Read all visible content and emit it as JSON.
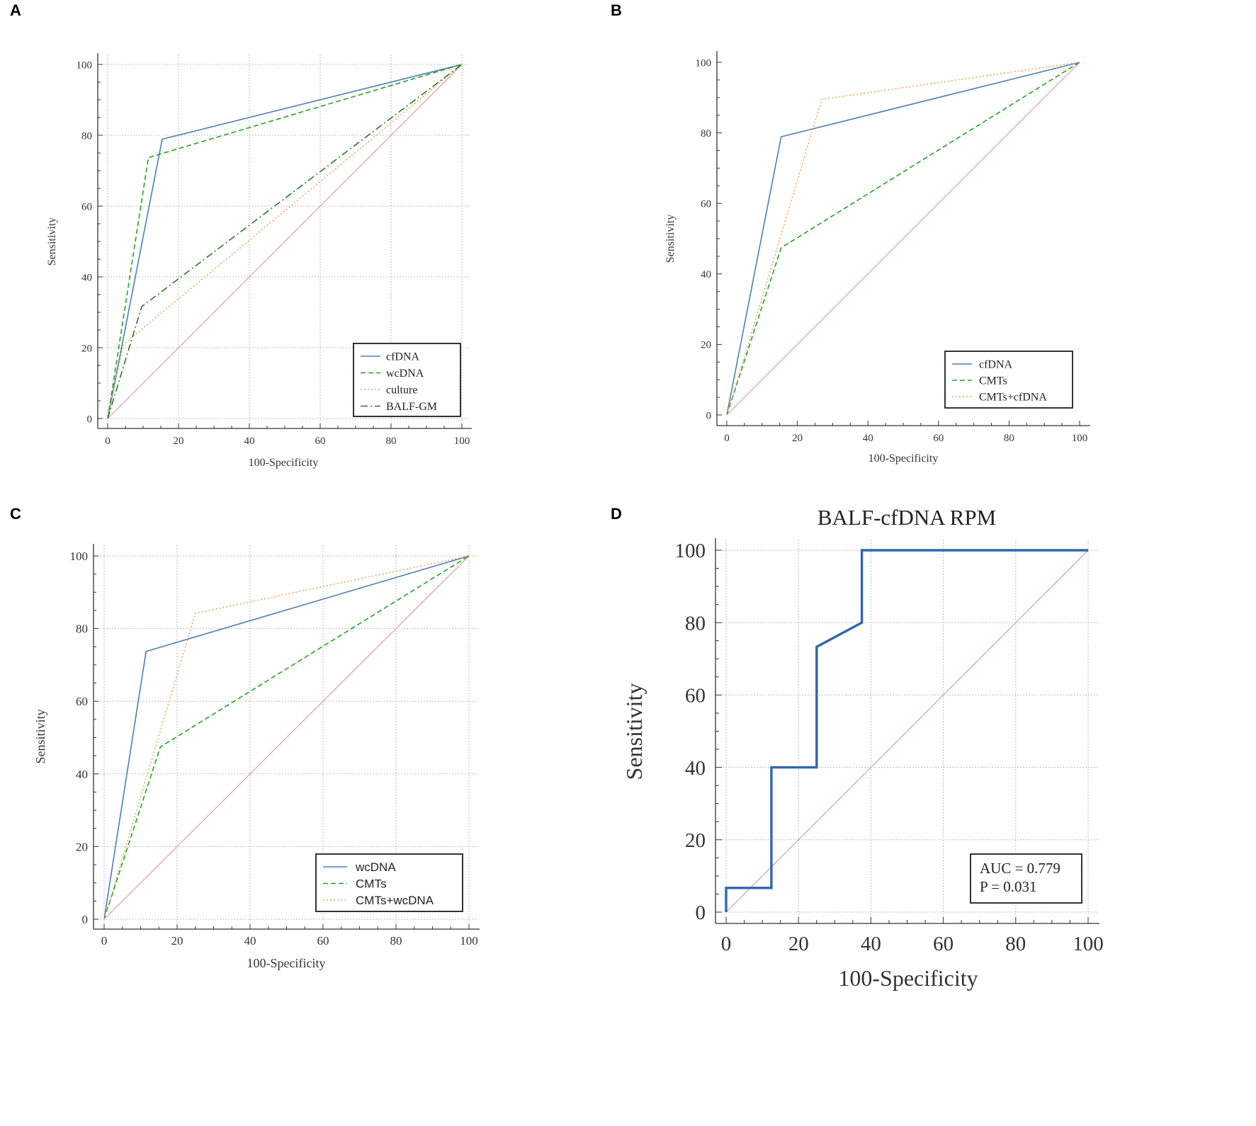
{
  "colors": {
    "blue": "#4a7ebb",
    "blue_dark": "#2e66b0",
    "green": "#22a51f",
    "dark_green": "#2a7a2a",
    "orange": "#f4a460",
    "diagonal": "#d9a0a0",
    "grid": "#bdbdbd",
    "axis": "#333333"
  },
  "chart_data": [
    {
      "panel": "A",
      "type": "line",
      "title": "",
      "xlabel": "100-Specificity",
      "ylabel": "Sensitivity",
      "xlim": [
        0,
        100
      ],
      "ylim": [
        0,
        100
      ],
      "xticks": [
        "0",
        "20",
        "40",
        "60",
        "80",
        "100"
      ],
      "yticks": [
        "0",
        "20",
        "40",
        "60",
        "80",
        "100"
      ],
      "grid": true,
      "legend_position": "bottom-right",
      "series": [
        {
          "name": "cfDNA",
          "style": "solid",
          "color": "blue",
          "x": [
            0,
            15.4,
            100
          ],
          "y": [
            0,
            78.9,
            100
          ]
        },
        {
          "name": "wcDNA",
          "style": "dashed",
          "color": "green",
          "x": [
            0,
            11.5,
            100
          ],
          "y": [
            0,
            73.7,
            100
          ]
        },
        {
          "name": "culture",
          "style": "dotted",
          "color": "orange",
          "x": [
            0,
            4.5,
            100
          ],
          "y": [
            0,
            21,
            100
          ]
        },
        {
          "name": "BALF-GM",
          "style": "dashdot",
          "color": "dark_green",
          "x": [
            0,
            9.6,
            100
          ],
          "y": [
            0,
            31.6,
            100
          ]
        }
      ]
    },
    {
      "panel": "B",
      "type": "line",
      "title": "",
      "xlabel": "100-Specificity",
      "ylabel": "Sensitivity",
      "xlim": [
        0,
        100
      ],
      "ylim": [
        0,
        100
      ],
      "xticks": [
        "0",
        "20",
        "40",
        "60",
        "80",
        "100"
      ],
      "yticks": [
        "0",
        "20",
        "40",
        "60",
        "80",
        "100"
      ],
      "grid": false,
      "legend_position": "bottom-right",
      "series": [
        {
          "name": "cfDNA",
          "style": "solid",
          "color": "blue",
          "x": [
            0,
            15.4,
            100
          ],
          "y": [
            0,
            78.9,
            100
          ]
        },
        {
          "name": "CMTs",
          "style": "dashed",
          "color": "green",
          "x": [
            0,
            15.4,
            100
          ],
          "y": [
            0,
            47.4,
            100
          ]
        },
        {
          "name": "CMTs+cfDNA",
          "style": "dotted",
          "color": "orange",
          "x": [
            0,
            26.9,
            100
          ],
          "y": [
            0,
            89.5,
            100
          ]
        }
      ]
    },
    {
      "panel": "C",
      "type": "line",
      "title": "",
      "xlabel": "100-Specificity",
      "ylabel": "Sensitivity",
      "xlim": [
        0,
        100
      ],
      "ylim": [
        0,
        100
      ],
      "xticks": [
        "0",
        "20",
        "40",
        "60",
        "80",
        "100"
      ],
      "yticks": [
        "0",
        "20",
        "40",
        "60",
        "80",
        "100"
      ],
      "grid": true,
      "legend_position": "bottom-right",
      "series": [
        {
          "name": "wcDNA",
          "style": "solid",
          "color": "blue",
          "x": [
            0,
            11.5,
            100
          ],
          "y": [
            0,
            73.7,
            100
          ]
        },
        {
          "name": "CMTs",
          "style": "dashed",
          "color": "green",
          "x": [
            0,
            15.4,
            100
          ],
          "y": [
            0,
            47.4,
            100
          ]
        },
        {
          "name": "CMTs+wcDNA",
          "style": "dotted",
          "color": "orange",
          "x": [
            0,
            25,
            100
          ],
          "y": [
            0,
            84.2,
            100
          ]
        }
      ]
    },
    {
      "panel": "D",
      "type": "line",
      "title": "BALF-cfDNA RPM",
      "xlabel": "100-Specificity",
      "ylabel": "Sensitivity",
      "xlim": [
        0,
        100
      ],
      "ylim": [
        0,
        100
      ],
      "xticks": [
        "0",
        "20",
        "40",
        "60",
        "80",
        "100"
      ],
      "yticks": [
        "0",
        "20",
        "40",
        "60",
        "80",
        "100"
      ],
      "grid": true,
      "legend_position": "bottom-right",
      "annotations": [
        "AUC = 0.779",
        "P = 0.031"
      ],
      "series": [
        {
          "name": "BALF-cfDNA RPM",
          "style": "solid-thick",
          "color": "blue_dark",
          "x": [
            0,
            0,
            12.5,
            12.5,
            25,
            25,
            37.5,
            37.5,
            100
          ],
          "y": [
            0,
            6.7,
            6.7,
            40,
            40,
            73.3,
            80,
            100,
            100
          ]
        }
      ]
    }
  ]
}
